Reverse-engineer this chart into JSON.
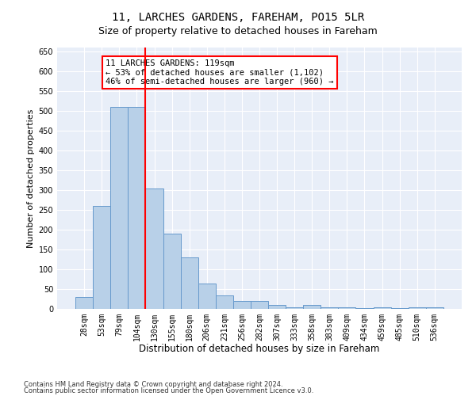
{
  "title": "11, LARCHES GARDENS, FAREHAM, PO15 5LR",
  "subtitle": "Size of property relative to detached houses in Fareham",
  "xlabel": "Distribution of detached houses by size in Fareham",
  "ylabel": "Number of detached properties",
  "footnote1": "Contains HM Land Registry data © Crown copyright and database right 2024.",
  "footnote2": "Contains public sector information licensed under the Open Government Licence v3.0.",
  "categories": [
    "28sqm",
    "53sqm",
    "79sqm",
    "104sqm",
    "130sqm",
    "155sqm",
    "180sqm",
    "206sqm",
    "231sqm",
    "256sqm",
    "282sqm",
    "307sqm",
    "333sqm",
    "358sqm",
    "383sqm",
    "409sqm",
    "434sqm",
    "459sqm",
    "485sqm",
    "510sqm",
    "536sqm"
  ],
  "values": [
    30,
    260,
    510,
    510,
    305,
    190,
    130,
    65,
    35,
    20,
    20,
    10,
    5,
    10,
    5,
    5,
    2,
    5,
    3,
    5,
    5
  ],
  "bar_color": "#b8d0e8",
  "bar_edge_color": "#6699cc",
  "bar_linewidth": 0.7,
  "vline_index": 3.5,
  "vline_color": "red",
  "annotation_text": "11 LARCHES GARDENS: 119sqm\n← 53% of detached houses are smaller (1,102)\n46% of semi-detached houses are larger (960) →",
  "annotation_box_color": "white",
  "annotation_box_edgecolor": "red",
  "ylim": [
    0,
    660
  ],
  "yticks": [
    0,
    50,
    100,
    150,
    200,
    250,
    300,
    350,
    400,
    450,
    500,
    550,
    600,
    650
  ],
  "title_fontsize": 10,
  "subtitle_fontsize": 9,
  "xlabel_fontsize": 8.5,
  "ylabel_fontsize": 8,
  "tick_fontsize": 7,
  "annotation_fontsize": 7.5,
  "bg_color": "#ffffff",
  "plot_bg_color": "#e8eef8",
  "grid_color": "#ffffff"
}
